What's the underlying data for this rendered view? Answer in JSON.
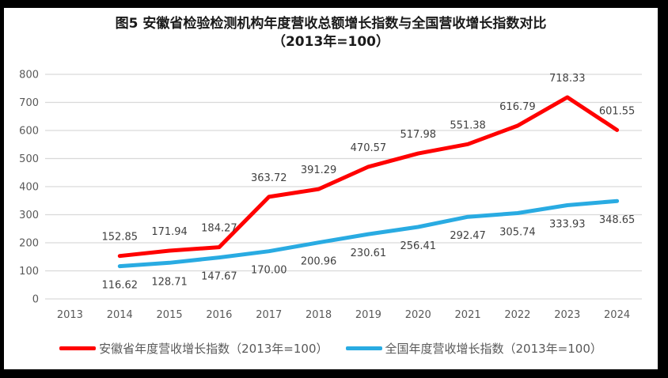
{
  "title": {
    "line1": "图5  安徽省检验检测机构年度营收总额增长指数与全国营收增长指数对比",
    "line2": "（2013年=100）"
  },
  "chart_data": {
    "type": "line",
    "title": "图5 安徽省检验检测机构年度营收总额增长指数与全国营收增长指数对比（2013年=100）",
    "categories": [
      "2013",
      "2014",
      "2015",
      "2016",
      "2017",
      "2018",
      "2019",
      "2020",
      "2021",
      "2022",
      "2023",
      "2024"
    ],
    "series": [
      {
        "name": "安徽省年度营收增长指数（2013年=100）",
        "color": "#FF0000",
        "label_position": "above",
        "values": [
          null,
          152.85,
          171.94,
          184.27,
          363.72,
          391.29,
          470.57,
          517.98,
          551.38,
          616.79,
          718.33,
          601.55
        ]
      },
      {
        "name": "全国年度营收增长指数（2013年=100）",
        "color": "#29ABE2",
        "label_position": "below",
        "values": [
          null,
          116.62,
          128.71,
          147.67,
          170.0,
          200.96,
          230.61,
          256.41,
          292.47,
          305.74,
          333.93,
          348.65
        ]
      }
    ],
    "ylim": [
      0,
      800
    ],
    "ytick_step": 100,
    "grid": true,
    "gridline_color": "#D9D9D9",
    "axis_label_color": "#595959",
    "data_label_color": "#404040",
    "legend_position": "bottom",
    "data_label_decimals": 2
  },
  "frame": {
    "border_color": "#000000",
    "background_color": "#FFFFFF"
  }
}
